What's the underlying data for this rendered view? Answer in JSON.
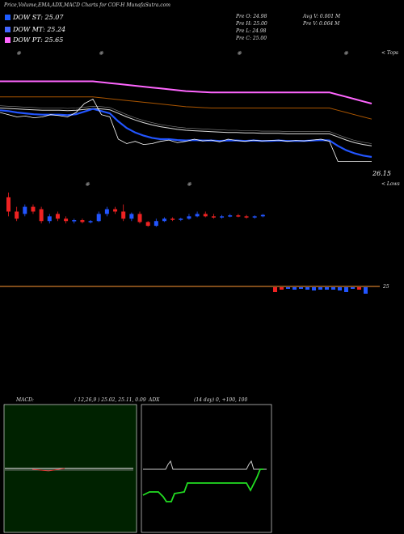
{
  "header": {
    "title": "Price,Volume,EMA,ADX,MACD Charts for COF-H MunafaSutra.com",
    "dow_st": "DOW ST: 25.07",
    "dow_mt": "DOW MT: 25.24",
    "dow_pt": "DOW PT: 25.65",
    "prev_open": "Pre   O: 24.98",
    "prev_high": "Pre   H: 25.00",
    "prev_low": "Pre   L: 24.98",
    "prev_close": "Pre   C: 25.00",
    "avg_volume": "Avg V: 0.001 M",
    "prev_volume": "Pre   V: 0.064   M",
    "colors": {
      "st": "#1e5cff",
      "mt": "#4466ff",
      "pt": "#ff66ff"
    }
  },
  "price_panel": {
    "right_top_label": "< Tops",
    "right_price_label": "26.15",
    "right_low_label": "< Lows",
    "volume_label": "25"
  },
  "macd_panel": {
    "label": "MACD:",
    "params": "( 12,26,9 ) 25.02, 25.11,  0.09"
  },
  "adx_panel": {
    "label": "ADX",
    "params": "(14  day) 0,  +100,  100"
  },
  "chart_data": {
    "type": "line",
    "price_series": {
      "close": [
        25.9,
        25.85,
        25.8,
        25.82,
        25.78,
        25.8,
        25.85,
        25.83,
        25.8,
        25.9,
        26.1,
        26.2,
        25.85,
        25.8,
        25.3,
        25.2,
        25.25,
        25.18,
        25.2,
        25.25,
        25.28,
        25.22,
        25.25,
        25.3,
        25.26,
        25.28,
        25.24,
        25.3,
        25.27,
        25.25,
        25.28,
        25.26,
        25.27,
        25.28,
        25.25,
        25.27,
        25.26,
        25.28,
        25.3,
        25.25,
        24.8,
        24.8,
        24.8,
        24.8,
        24.8
      ],
      "ema_short": [
        25.95,
        25.93,
        25.9,
        25.88,
        25.86,
        25.85,
        25.85,
        25.85,
        25.84,
        25.86,
        25.92,
        25.98,
        25.93,
        25.88,
        25.7,
        25.55,
        25.45,
        25.38,
        25.33,
        25.3,
        25.3,
        25.28,
        25.27,
        25.28,
        25.27,
        25.27,
        25.26,
        25.27,
        25.27,
        25.26,
        25.27,
        25.26,
        25.26,
        25.27,
        25.26,
        25.26,
        25.26,
        25.27,
        25.28,
        25.27,
        25.15,
        25.05,
        24.98,
        24.93,
        24.9
      ],
      "ema_mid": [
        26.0,
        25.99,
        25.98,
        25.97,
        25.96,
        25.95,
        25.95,
        25.95,
        25.94,
        25.95,
        25.97,
        25.99,
        25.98,
        25.96,
        25.88,
        25.8,
        25.73,
        25.67,
        25.62,
        25.58,
        25.55,
        25.52,
        25.5,
        25.49,
        25.48,
        25.47,
        25.46,
        25.45,
        25.45,
        25.44,
        25.44,
        25.43,
        25.43,
        25.43,
        25.42,
        25.42,
        25.42,
        25.42,
        25.42,
        25.42,
        25.35,
        25.28,
        25.22,
        25.18,
        25.15
      ],
      "ema_long": [
        26.6,
        26.6,
        26.6,
        26.6,
        26.6,
        26.6,
        26.6,
        26.6,
        26.6,
        26.6,
        26.6,
        26.6,
        26.58,
        26.56,
        26.54,
        26.52,
        26.5,
        26.48,
        26.46,
        26.44,
        26.42,
        26.4,
        26.38,
        26.37,
        26.36,
        26.35,
        26.35,
        26.35,
        26.35,
        26.35,
        26.35,
        26.35,
        26.35,
        26.35,
        26.35,
        26.35,
        26.35,
        26.35,
        26.35,
        26.35,
        26.3,
        26.25,
        26.2,
        26.15,
        26.1
      ]
    },
    "candles": [
      {
        "o": 25.9,
        "c": 25.6,
        "h": 26.0,
        "l": 25.5
      },
      {
        "o": 25.6,
        "c": 25.45,
        "h": 25.7,
        "l": 25.4
      },
      {
        "o": 25.55,
        "c": 25.7,
        "h": 25.75,
        "l": 25.5
      },
      {
        "o": 25.7,
        "c": 25.6,
        "h": 25.75,
        "l": 25.55
      },
      {
        "o": 25.65,
        "c": 25.4,
        "h": 25.7,
        "l": 25.35
      },
      {
        "o": 25.4,
        "c": 25.5,
        "h": 25.55,
        "l": 25.35
      },
      {
        "o": 25.55,
        "c": 25.45,
        "h": 25.6,
        "l": 25.4
      },
      {
        "o": 25.45,
        "c": 25.4,
        "h": 25.5,
        "l": 25.35
      },
      {
        "o": 25.4,
        "c": 25.42,
        "h": 25.45,
        "l": 25.35
      },
      {
        "o": 25.42,
        "c": 25.38,
        "h": 25.45,
        "l": 25.35
      },
      {
        "o": 25.38,
        "c": 25.4,
        "h": 25.42,
        "l": 25.35
      },
      {
        "o": 25.4,
        "c": 25.55,
        "h": 25.6,
        "l": 25.38
      },
      {
        "o": 25.55,
        "c": 25.65,
        "h": 25.7,
        "l": 25.5
      },
      {
        "o": 25.65,
        "c": 25.6,
        "h": 25.7,
        "l": 25.55
      },
      {
        "o": 25.6,
        "c": 25.45,
        "h": 25.75,
        "l": 25.4
      },
      {
        "o": 25.45,
        "c": 25.55,
        "h": 25.58,
        "l": 25.4
      },
      {
        "o": 25.55,
        "c": 25.38,
        "h": 25.6,
        "l": 25.35
      },
      {
        "o": 25.38,
        "c": 25.3,
        "h": 25.4,
        "l": 25.28
      },
      {
        "o": 25.3,
        "c": 25.4,
        "h": 25.45,
        "l": 25.28
      },
      {
        "o": 25.4,
        "c": 25.45,
        "h": 25.48,
        "l": 25.38
      },
      {
        "o": 25.45,
        "c": 25.43,
        "h": 25.48,
        "l": 25.4
      },
      {
        "o": 25.43,
        "c": 25.45,
        "h": 25.47,
        "l": 25.4
      },
      {
        "o": 25.45,
        "c": 25.5,
        "h": 25.55,
        "l": 25.43
      },
      {
        "o": 25.5,
        "c": 25.55,
        "h": 25.6,
        "l": 25.48
      },
      {
        "o": 25.55,
        "c": 25.5,
        "h": 25.6,
        "l": 25.48
      },
      {
        "o": 25.5,
        "c": 25.48,
        "h": 25.55,
        "l": 25.45
      },
      {
        "o": 25.48,
        "c": 25.5,
        "h": 25.53,
        "l": 25.45
      },
      {
        "o": 25.5,
        "c": 25.52,
        "h": 25.55,
        "l": 25.48
      },
      {
        "o": 25.52,
        "c": 25.5,
        "h": 25.55,
        "l": 25.48
      },
      {
        "o": 25.5,
        "c": 25.48,
        "h": 25.53,
        "l": 25.45
      },
      {
        "o": 25.48,
        "c": 25.5,
        "h": 25.52,
        "l": 25.45
      },
      {
        "o": 25.5,
        "c": 25.53,
        "h": 25.55,
        "l": 25.48
      }
    ],
    "macd": {
      "macd": 25.02,
      "signal": 25.11,
      "histogram": 0.09
    },
    "adx": {
      "period": 14,
      "adx": 0,
      "plus_di": 100,
      "minus_di": 100
    }
  }
}
